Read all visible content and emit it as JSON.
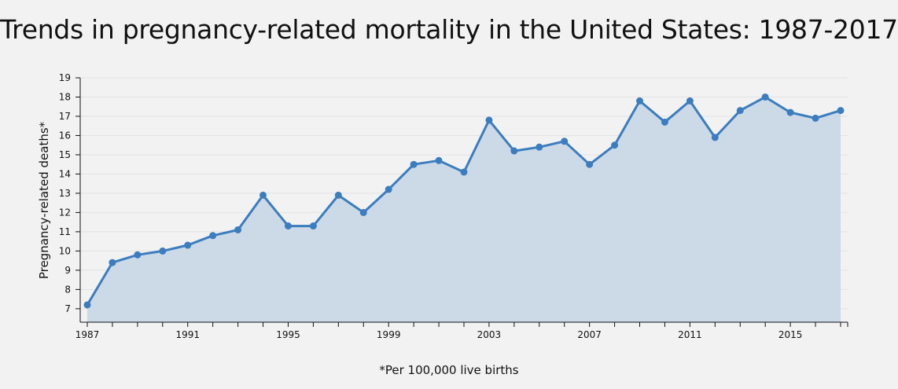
{
  "chart_data": {
    "type": "area",
    "title": "Trends in pregnancy-related mortality in the United States: 1987-2017",
    "ylabel": "Pregnancy-related deaths*",
    "xlabel": "",
    "footnote": "*Per 100,000 live births",
    "x": [
      1987,
      1988,
      1989,
      1990,
      1991,
      1992,
      1993,
      1994,
      1995,
      1996,
      1997,
      1998,
      1999,
      2000,
      2001,
      2002,
      2003,
      2004,
      2005,
      2006,
      2007,
      2008,
      2009,
      2010,
      2011,
      2012,
      2013,
      2014,
      2015,
      2016,
      2017
    ],
    "series": [
      {
        "values": [
          7.2,
          9.4,
          9.8,
          10.0,
          10.3,
          10.8,
          11.1,
          12.9,
          11.3,
          11.3,
          12.9,
          12.0,
          13.2,
          14.5,
          14.7,
          14.1,
          16.8,
          15.2,
          15.4,
          15.7,
          14.5,
          15.5,
          17.8,
          16.7,
          17.8,
          15.9,
          17.3,
          18.0,
          17.2,
          16.9,
          17.3
        ]
      }
    ],
    "x_ticks": [
      "1987",
      "1991",
      "1995",
      "1999",
      "2003",
      "2007",
      "2011",
      "2015"
    ],
    "y_ticks": [
      "7",
      "8",
      "9",
      "10",
      "11",
      "12",
      "13",
      "14",
      "15",
      "16",
      "17",
      "18",
      "19"
    ],
    "ylim": [
      6.3,
      19
    ],
    "xlim": [
      1987,
      2017
    ],
    "grid": "horizontal",
    "colors": {
      "line": "#3b7dbf",
      "fill": "#ccd9e6",
      "grid": "#e3e3e3",
      "background": "#f2f2f2"
    }
  }
}
